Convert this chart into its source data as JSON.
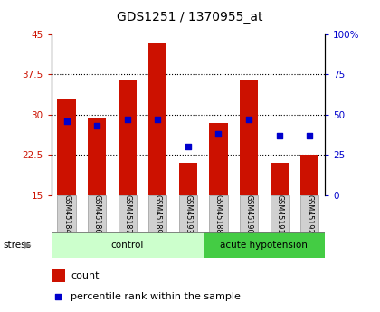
{
  "title": "GDS1251 / 1370955_at",
  "samples": [
    "GSM45184",
    "GSM45186",
    "GSM45187",
    "GSM45189",
    "GSM45193",
    "GSM45188",
    "GSM45190",
    "GSM45191",
    "GSM45192"
  ],
  "count_values": [
    33.0,
    29.5,
    36.5,
    43.5,
    21.0,
    28.5,
    36.5,
    21.0,
    22.5
  ],
  "percentile_values": [
    46.0,
    43.0,
    47.0,
    47.0,
    30.0,
    38.0,
    47.0,
    37.0,
    37.0
  ],
  "baseline": 15.0,
  "ylim_left": [
    15,
    45
  ],
  "ylim_right": [
    0,
    100
  ],
  "yticks_left": [
    15,
    22.5,
    30,
    37.5,
    45
  ],
  "ytick_labels_left": [
    "15",
    "22.5",
    "30",
    "37.5",
    "45"
  ],
  "yticks_right": [
    0,
    25,
    50,
    75,
    100
  ],
  "ytick_labels_right": [
    "0",
    "25",
    "50",
    "75",
    "100%"
  ],
  "bar_color": "#cc1100",
  "percentile_color": "#0000cc",
  "control_n": 5,
  "control_label": "control",
  "acute_label": "acute hypotension",
  "control_bg": "#ccffcc",
  "acute_bg": "#44cc44",
  "stress_label": "stress",
  "legend_count": "count",
  "legend_pct": "percentile rank within the sample",
  "title_fontsize": 10,
  "bar_width": 0.6,
  "label_fontsize": 7,
  "tick_fontsize": 7.5
}
